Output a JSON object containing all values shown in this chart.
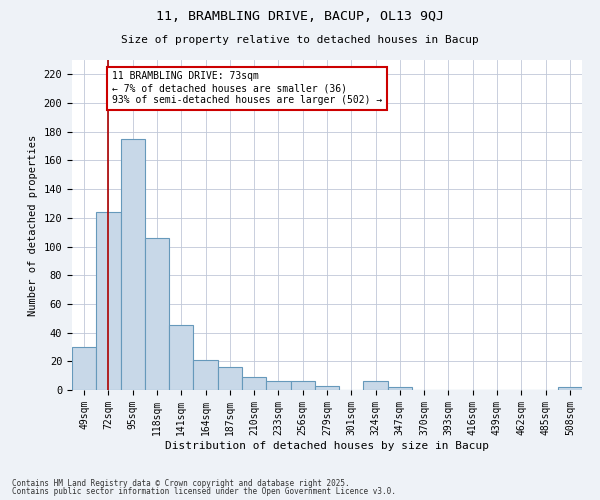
{
  "title1": "11, BRAMBLING DRIVE, BACUP, OL13 9QJ",
  "title2": "Size of property relative to detached houses in Bacup",
  "xlabel": "Distribution of detached houses by size in Bacup",
  "ylabel": "Number of detached properties",
  "categories": [
    "49sqm",
    "72sqm",
    "95sqm",
    "118sqm",
    "141sqm",
    "164sqm",
    "187sqm",
    "210sqm",
    "233sqm",
    "256sqm",
    "279sqm",
    "301sqm",
    "324sqm",
    "347sqm",
    "370sqm",
    "393sqm",
    "416sqm",
    "439sqm",
    "462sqm",
    "485sqm",
    "508sqm"
  ],
  "values": [
    30,
    124,
    175,
    106,
    45,
    21,
    16,
    9,
    6,
    6,
    3,
    0,
    6,
    2,
    0,
    0,
    0,
    0,
    0,
    0,
    2
  ],
  "bar_color": "#c8d8e8",
  "bar_edge_color": "#6699bb",
  "vline_x": 1.0,
  "vline_color": "#aa0000",
  "annotation_text": "11 BRAMBLING DRIVE: 73sqm\n← 7% of detached houses are smaller (36)\n93% of semi-detached houses are larger (502) →",
  "annotation_box_color": "#ffffff",
  "annotation_box_edge": "#cc0000",
  "ylim": [
    0,
    230
  ],
  "yticks": [
    0,
    20,
    40,
    60,
    80,
    100,
    120,
    140,
    160,
    180,
    200,
    220
  ],
  "footer1": "Contains HM Land Registry data © Crown copyright and database right 2025.",
  "footer2": "Contains public sector information licensed under the Open Government Licence v3.0.",
  "bg_color": "#eef2f7",
  "plot_bg_color": "#ffffff"
}
